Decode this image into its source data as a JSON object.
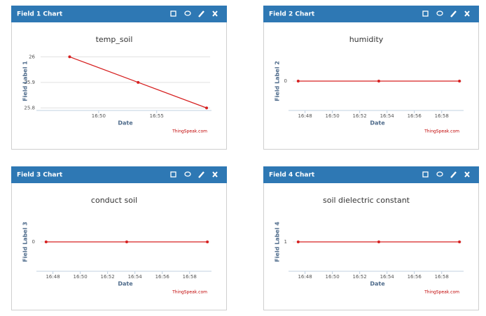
{
  "chart_data": [
    {
      "type": "line",
      "panel_title": "Field 1 Chart",
      "title": "temp_soil",
      "x_label": "Date",
      "y_label": "Field Label 1",
      "credit": "ThingSpeak.com",
      "x": [
        1007.5,
        1013.4,
        1019.3
      ],
      "series": [
        {
          "name": "temp_soil",
          "color": "#d62020",
          "values": [
            26,
            25.9,
            25.8
          ]
        }
      ],
      "xlim": [
        1005,
        1019.6
      ],
      "xticks": [
        {
          "value": 1010,
          "label": "16:50"
        },
        {
          "value": 1015,
          "label": "16:55"
        }
      ],
      "ylim": [
        25.79,
        26.02
      ],
      "yticks": [
        25.8,
        25.9,
        26
      ],
      "grid": true
    },
    {
      "type": "line",
      "panel_title": "Field 2 Chart",
      "title": "humidity",
      "x_label": "Date",
      "y_label": "Field Label 2",
      "credit": "ThingSpeak.com",
      "x": [
        1007.5,
        1013.4,
        1019.3
      ],
      "series": [
        {
          "name": "humidity",
          "color": "#d62020",
          "values": [
            0,
            0,
            0
          ]
        }
      ],
      "xlim": [
        1007.1,
        1019.5
      ],
      "xticks": [
        {
          "value": 1008,
          "label": "16:48"
        },
        {
          "value": 1010,
          "label": "16:50"
        },
        {
          "value": 1012,
          "label": "16:52"
        },
        {
          "value": 1014,
          "label": "16:54"
        },
        {
          "value": 1016,
          "label": "16:56"
        },
        {
          "value": 1018,
          "label": "16:58"
        }
      ],
      "ylim": [
        -1,
        1
      ],
      "yticks": [
        0
      ],
      "grid": true
    },
    {
      "type": "line",
      "panel_title": "Field 3 Chart",
      "title": "conduct soil",
      "x_label": "Date",
      "y_label": "Field Label 3",
      "credit": "ThingSpeak.com",
      "x": [
        1007.5,
        1013.4,
        1019.3
      ],
      "series": [
        {
          "name": "conduct soil",
          "color": "#d62020",
          "values": [
            0,
            0,
            0
          ]
        }
      ],
      "xlim": [
        1007.1,
        1019.5
      ],
      "xticks": [
        {
          "value": 1008,
          "label": "16:48"
        },
        {
          "value": 1010,
          "label": "16:50"
        },
        {
          "value": 1012,
          "label": "16:52"
        },
        {
          "value": 1014,
          "label": "16:54"
        },
        {
          "value": 1016,
          "label": "16:56"
        },
        {
          "value": 1018,
          "label": "16:58"
        }
      ],
      "ylim": [
        -1,
        1
      ],
      "yticks": [
        0
      ],
      "grid": true
    },
    {
      "type": "line",
      "panel_title": "Field 4 Chart",
      "title": "soil dielectric constant",
      "x_label": "Date",
      "y_label": "Field Label 4",
      "credit": "ThingSpeak.com",
      "x": [
        1007.5,
        1013.4,
        1019.3
      ],
      "series": [
        {
          "name": "soil dielectric constant",
          "color": "#d62020",
          "values": [
            1,
            1,
            1
          ]
        }
      ],
      "xlim": [
        1007.1,
        1019.5
      ],
      "xticks": [
        {
          "value": 1008,
          "label": "16:48"
        },
        {
          "value": 1010,
          "label": "16:50"
        },
        {
          "value": 1012,
          "label": "16:52"
        },
        {
          "value": 1014,
          "label": "16:54"
        },
        {
          "value": 1016,
          "label": "16:56"
        },
        {
          "value": 1018,
          "label": "16:58"
        }
      ],
      "ylim": [
        0,
        2
      ],
      "yticks": [
        1
      ],
      "grid": true
    }
  ]
}
